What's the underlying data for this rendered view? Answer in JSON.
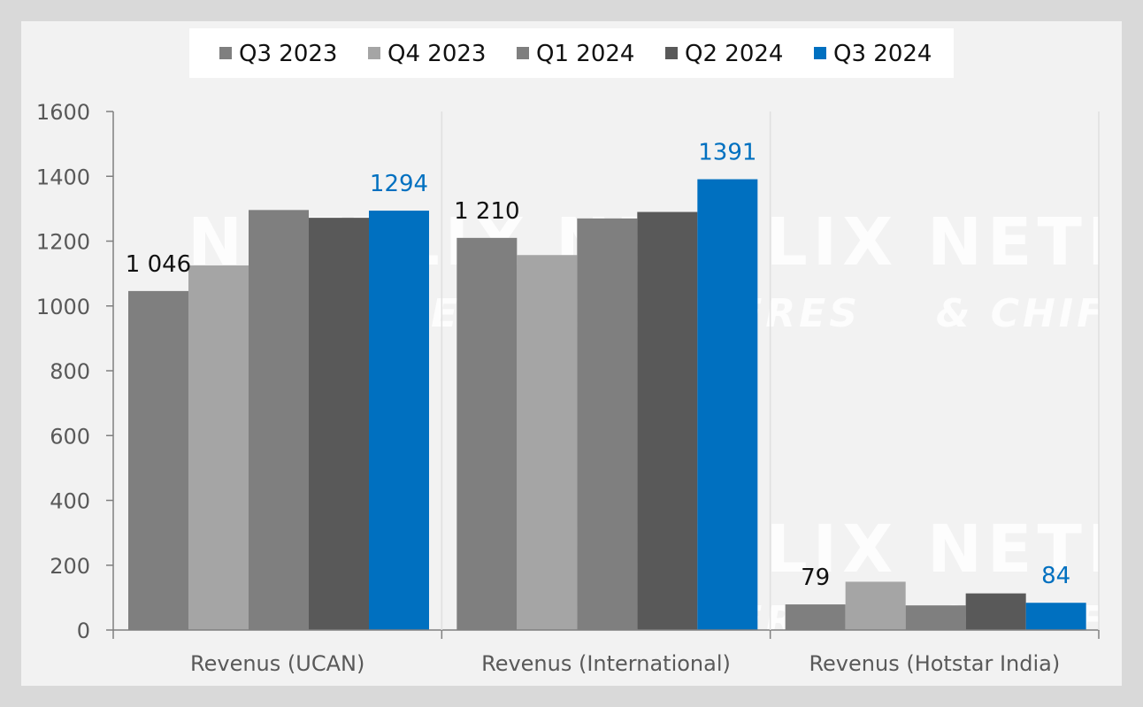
{
  "chart_data": {
    "type": "bar",
    "categories": [
      "Revenus (UCAN)",
      "Revenus (International)",
      "Revenus (Hotstar India)"
    ],
    "series": [
      {
        "name": "Q3 2023",
        "color": "#7f7f7f",
        "values": [
          1046,
          1210,
          79
        ]
      },
      {
        "name": "Q4 2023",
        "color": "#a5a5a5",
        "values": [
          1125,
          1157,
          149
        ]
      },
      {
        "name": "Q1 2024",
        "color": "#7f7f7f",
        "values": [
          1296,
          1270,
          76
        ]
      },
      {
        "name": "Q2 2024",
        "color": "#595959",
        "values": [
          1272,
          1290,
          113
        ]
      },
      {
        "name": "Q3 2024",
        "color": "#0070c0",
        "values": [
          1294,
          1391,
          84
        ]
      }
    ],
    "data_labels": [
      {
        "series": 0,
        "category": 0,
        "text": "1 046",
        "color": "#111111"
      },
      {
        "series": 4,
        "category": 0,
        "text": "1294",
        "color": "#0070c0"
      },
      {
        "series": 0,
        "category": 1,
        "text": "1 210",
        "color": "#111111"
      },
      {
        "series": 4,
        "category": 1,
        "text": "1391",
        "color": "#0070c0"
      },
      {
        "series": 0,
        "category": 2,
        "text": "79",
        "color": "#111111"
      },
      {
        "series": 4,
        "category": 2,
        "text": "84",
        "color": "#0070c0"
      }
    ],
    "yticks": [
      "0",
      "200",
      "400",
      "600",
      "800",
      "1000",
      "1200",
      "1400",
      "1600"
    ],
    "ylim": [
      0,
      1600
    ],
    "legend_position": "top",
    "grid": false
  },
  "watermark": {
    "brand": "NETFLIX",
    "tagline": "& CHIFFRES"
  }
}
